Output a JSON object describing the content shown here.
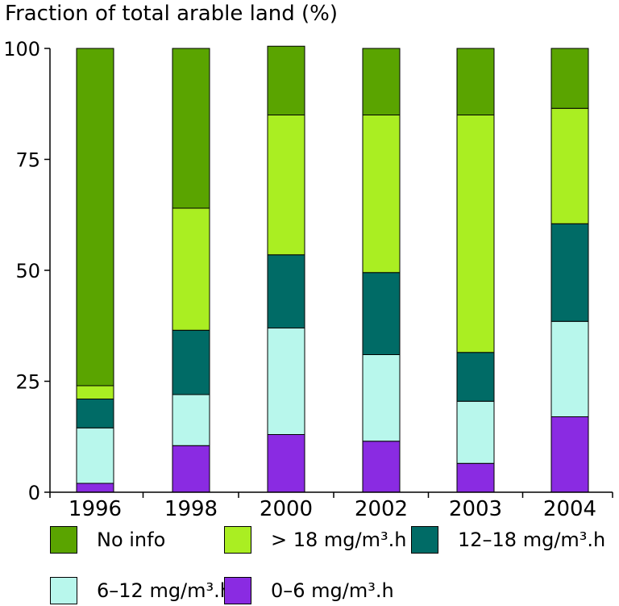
{
  "chart_data": {
    "type": "bar",
    "stacked": true,
    "ylabel": "Fraction of total arable land (%)",
    "ylim": [
      0,
      100
    ],
    "yticks": [
      0,
      25,
      50,
      75,
      100
    ],
    "categories": [
      "1996",
      "1998",
      "2000",
      "2002",
      "2003",
      "2004"
    ],
    "series": [
      {
        "name": "0–6 mg/m³.h",
        "color": "#8a2be2",
        "values": [
          2,
          10.5,
          13,
          11.5,
          6.5,
          17
        ]
      },
      {
        "name": "6–12 mg/m³.h",
        "color": "#b8f7ec",
        "values": [
          12.5,
          11.5,
          24,
          19.5,
          14,
          21.5
        ]
      },
      {
        "name": "12–18 mg/m³.h",
        "color": "#006b66",
        "values": [
          6.5,
          14.5,
          16.5,
          18.5,
          11,
          22
        ]
      },
      {
        "name": "> 18 mg/m³.h",
        "color": "#aaee22",
        "values": [
          3,
          27.5,
          31.5,
          35.5,
          53.5,
          26
        ]
      },
      {
        "name": "No info",
        "color": "#5aa400",
        "values": [
          76,
          36,
          15.5,
          15,
          15,
          13.5
        ]
      }
    ],
    "legend_order": [
      4,
      3,
      2,
      1,
      0
    ],
    "legend_position": "bottom"
  }
}
